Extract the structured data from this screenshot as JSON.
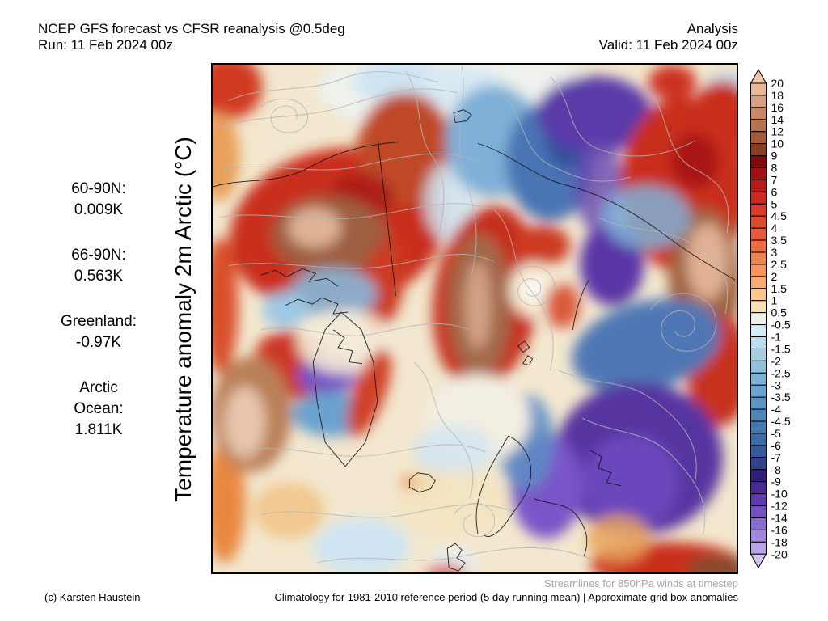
{
  "header": {
    "left_line1": "NCEP GFS forecast vs CFSR reanalysis @0.5deg",
    "left_line2": "Run: 11 Feb 2024 00z",
    "right_line1": "Analysis",
    "right_line2": "Valid: 11 Feb 2024 00z"
  },
  "y_axis_label": "Temperature anomaly 2m Arctic (°C)",
  "stats": [
    {
      "lines": [
        "60-90N:",
        "0.009K"
      ]
    },
    {
      "lines": [
        "66-90N:",
        "0.563K"
      ]
    },
    {
      "lines": [
        "Greenland:",
        "-0.97K"
      ]
    },
    {
      "lines": [
        "Arctic",
        "Ocean:",
        "1.811K"
      ]
    }
  ],
  "colorbar": {
    "labels": [
      "20",
      "18",
      "16",
      "14",
      "12",
      "10",
      "9",
      "8",
      "7",
      "6",
      "5",
      "4.5",
      "4",
      "3.5",
      "3",
      "2.5",
      "2",
      "1.5",
      "1",
      "0.5",
      "-0.5",
      "-1",
      "-1.5",
      "-2",
      "-2.5",
      "-3",
      "-3.5",
      "-4",
      "-4.5",
      "-5",
      "-6",
      "-7",
      "-8",
      "-9",
      "-10",
      "-12",
      "-14",
      "-16",
      "-18",
      "-20"
    ],
    "cell_colors": [
      "#e9b795",
      "#d89f7e",
      "#c98863",
      "#b9714e",
      "#a65a39",
      "#8a3d20",
      "#7f0a10",
      "#a31117",
      "#bb1a1b",
      "#d0281f",
      "#d93b27",
      "#e14a2d",
      "#e75a35",
      "#ee6c3f",
      "#f3804d",
      "#f7955c",
      "#f9aa6e",
      "#fcc68a",
      "#f5e2af",
      "#f1efe9",
      "#d6ebf8",
      "#bddcee",
      "#a6cfe6",
      "#90c2de",
      "#7ab3d7",
      "#68a4ce",
      "#5a95c5",
      "#4d87bc",
      "#4379b3",
      "#3c6baa",
      "#35589e",
      "#31408f",
      "#301f7a",
      "#4b2a95",
      "#603dae",
      "#7453c0",
      "#8a6bd0",
      "#a186dc",
      "#b9a4e8"
    ],
    "arrow_top_color": "#f0c6ac",
    "arrow_bottom_color": "#d1c4f1"
  },
  "footer": {
    "streamlines_note": "Streamlines for 850hPa winds at timestep",
    "copyright": "(c) Karsten Haustein",
    "climatology_note": "Climatology for 1981-2010 reference period (5 day running mean) | Approximate grid box anomalies"
  },
  "chart_data": {
    "type": "heatmap",
    "title": "Temperature anomaly 2m Arctic (°C)",
    "colorbar_ticks": [
      20,
      18,
      16,
      14,
      12,
      10,
      9,
      8,
      7,
      6,
      5,
      4.5,
      4,
      3.5,
      3,
      2.5,
      2,
      1.5,
      1,
      0.5,
      -0.5,
      -1,
      -1.5,
      -2,
      -2.5,
      -3,
      -3.5,
      -4,
      -4.5,
      -5,
      -6,
      -7,
      -8,
      -9,
      -10,
      -12,
      -14,
      -16,
      -18,
      -20
    ],
    "region_means_K": {
      "60-90N": 0.009,
      "66-90N": 0.563,
      "Greenland": -0.97,
      "Arctic Ocean": 1.811
    },
    "overlay": "Streamlines for 850hPa winds at timestep"
  }
}
